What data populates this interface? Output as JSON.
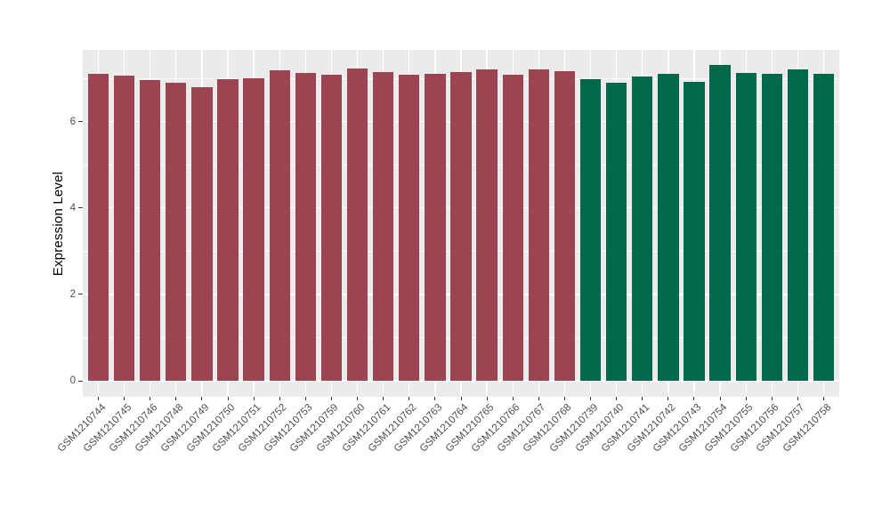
{
  "figure": {
    "background": "#FFFFFF",
    "panel_bg": "#EBEBEB",
    "grid_color": "#FFFFFF",
    "axis_text_color": "#4D4D4D",
    "axis_title_color": "#000000",
    "tick_mark_color": "#333333"
  },
  "chart_data": {
    "type": "bar",
    "title": "",
    "xlabel": "",
    "ylabel": "Expression Level",
    "ylim": [
      -0.37,
      7.66
    ],
    "yticks": [
      0,
      2,
      4,
      6
    ],
    "yminor_ticks": [
      1,
      3,
      5,
      7
    ],
    "grid": true,
    "legend_position": "none",
    "bar_width_fraction": 0.8,
    "x_label_angle_deg": 45,
    "group_colors": {
      "group1": "#9C4452",
      "group2": "#00694B"
    },
    "categories": [
      "GSM1210744",
      "GSM1210745",
      "GSM1210746",
      "GSM1210748",
      "GSM1210749",
      "GSM1210750",
      "GSM1210751",
      "GSM1210752",
      "GSM1210753",
      "GSM1210759",
      "GSM1210760",
      "GSM1210761",
      "GSM1210762",
      "GSM1210763",
      "GSM1210764",
      "GSM1210765",
      "GSM1210766",
      "GSM1210767",
      "GSM1210768",
      "GSM1210739",
      "GSM1210740",
      "GSM1210741",
      "GSM1210742",
      "GSM1210743",
      "GSM1210754",
      "GSM1210755",
      "GSM1210756",
      "GSM1210757",
      "GSM1210758"
    ],
    "values": [
      7.11,
      7.06,
      6.96,
      6.89,
      6.8,
      6.99,
      7.01,
      7.18,
      7.12,
      7.08,
      7.23,
      7.14,
      7.09,
      7.1,
      7.14,
      7.21,
      7.08,
      7.21,
      7.17,
      6.99,
      6.9,
      7.04,
      7.11,
      6.92,
      7.3,
      7.12,
      7.11,
      7.21,
      7.1
    ],
    "bar_groups": [
      "group1",
      "group1",
      "group1",
      "group1",
      "group1",
      "group1",
      "group1",
      "group1",
      "group1",
      "group1",
      "group1",
      "group1",
      "group1",
      "group1",
      "group1",
      "group1",
      "group1",
      "group1",
      "group1",
      "group2",
      "group2",
      "group2",
      "group2",
      "group2",
      "group2",
      "group2",
      "group2",
      "group2",
      "group2"
    ]
  }
}
